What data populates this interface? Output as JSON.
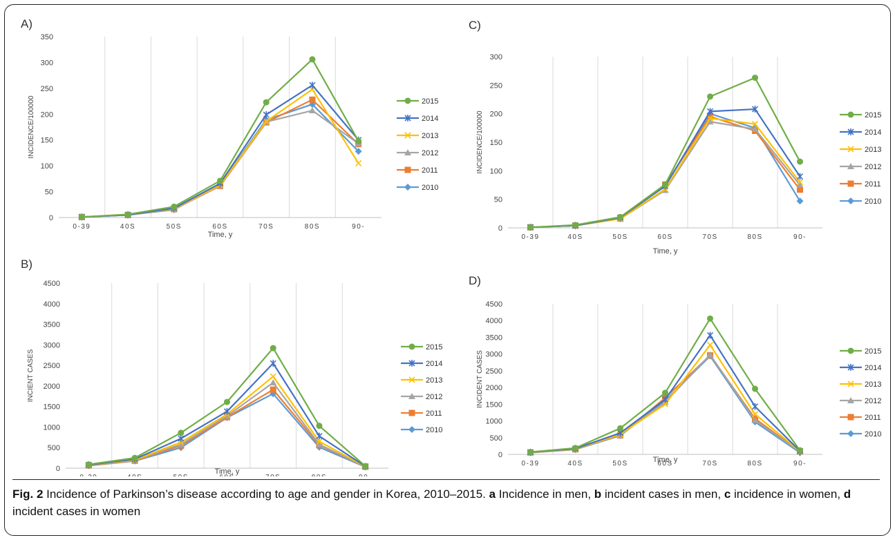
{
  "caption": {
    "label": "Fig. 2",
    "title": " Incidence of Parkinson’s disease according to age and gender in Korea, 2010–2015. ",
    "parts": [
      {
        "letter": "a",
        "text": " Incidence in men, "
      },
      {
        "letter": "b",
        "text": " incident cases in men, "
      },
      {
        "letter": "c",
        "text": " incidence in women, "
      },
      {
        "letter": "d",
        "text": " incident cases in women"
      }
    ]
  },
  "colors": {
    "2015": "#70AD47",
    "2014": "#4472C4",
    "2013": "#FFC000",
    "2012": "#A5A5A5",
    "2011": "#ED7D31",
    "2010": "#5B9BD5"
  },
  "chart_data": [
    {
      "panel": "A)",
      "type": "line",
      "categories": [
        "0-39",
        "40S",
        "50S",
        "60S",
        "70S",
        "80S",
        "90-"
      ],
      "ylabel": "INCIDENCE/100000",
      "xlabel": "Time, y",
      "ylim": [
        0,
        350
      ],
      "yticks": [
        0,
        50,
        100,
        150,
        200,
        250,
        300,
        350
      ],
      "grid": "vertical",
      "legend": "right",
      "series": [
        {
          "name": "2015",
          "marker": "circle",
          "values": [
            1,
            6,
            21,
            71,
            223,
            306,
            148
          ]
        },
        {
          "name": "2014",
          "marker": "star",
          "values": [
            1,
            5,
            18,
            66,
            199,
            256,
            150
          ]
        },
        {
          "name": "2013",
          "marker": "x",
          "values": [
            1,
            5,
            17,
            63,
            186,
            248,
            105
          ]
        },
        {
          "name": "2012",
          "marker": "triangle",
          "values": [
            1,
            5,
            16,
            62,
            185,
            207,
            143
          ]
        },
        {
          "name": "2011",
          "marker": "square",
          "values": [
            1,
            5,
            16,
            61,
            184,
            228,
            142
          ]
        },
        {
          "name": "2010",
          "marker": "diamond",
          "values": [
            1,
            5,
            15,
            64,
            189,
            219,
            128
          ]
        }
      ]
    },
    {
      "panel": "B)",
      "type": "line",
      "categories": [
        "0-39",
        "40S",
        "50S",
        "60S",
        "70S",
        "80S",
        "90-"
      ],
      "ylabel": "INCIENT CASES",
      "xlabel": "Time, y",
      "ylim": [
        0,
        4500
      ],
      "yticks": [
        0,
        500,
        1000,
        1500,
        2000,
        2500,
        3000,
        3500,
        4000,
        4500
      ],
      "grid": "vertical",
      "legend": "right",
      "series": [
        {
          "name": "2015",
          "marker": "circle",
          "values": [
            90,
            250,
            860,
            1610,
            2920,
            1030,
            50
          ]
        },
        {
          "name": "2014",
          "marker": "star",
          "values": [
            80,
            220,
            720,
            1380,
            2550,
            780,
            45
          ]
        },
        {
          "name": "2013",
          "marker": "x",
          "values": [
            75,
            200,
            630,
            1310,
            2230,
            650,
            40
          ]
        },
        {
          "name": "2012",
          "marker": "triangle",
          "values": [
            70,
            190,
            580,
            1270,
            2080,
            580,
            35
          ]
        },
        {
          "name": "2011",
          "marker": "square",
          "values": [
            65,
            180,
            550,
            1240,
            1910,
            560,
            35
          ]
        },
        {
          "name": "2010",
          "marker": "diamond",
          "values": [
            60,
            175,
            500,
            1230,
            1810,
            510,
            30
          ]
        }
      ]
    },
    {
      "panel": "C)",
      "type": "line",
      "categories": [
        "0-39",
        "40S",
        "50S",
        "60S",
        "70S",
        "80S",
        "90-"
      ],
      "ylabel": "INCIDENCE/100000",
      "xlabel": "Time, y",
      "ylim": [
        0,
        300
      ],
      "yticks": [
        0,
        50,
        100,
        150,
        200,
        250,
        300
      ],
      "grid": "vertical",
      "legend": "right",
      "series": [
        {
          "name": "2015",
          "marker": "circle",
          "values": [
            1,
            5,
            19,
            76,
            230,
            263,
            116
          ]
        },
        {
          "name": "2014",
          "marker": "star",
          "values": [
            1,
            4,
            18,
            73,
            204,
            208,
            90
          ]
        },
        {
          "name": "2013",
          "marker": "x",
          "values": [
            1,
            4,
            16,
            68,
            192,
            182,
            80
          ]
        },
        {
          "name": "2012",
          "marker": "triangle",
          "values": [
            1,
            4,
            16,
            66,
            186,
            173,
            75
          ]
        },
        {
          "name": "2011",
          "marker": "square",
          "values": [
            1,
            4,
            16,
            76,
            195,
            170,
            67
          ]
        },
        {
          "name": "2010",
          "marker": "diamond",
          "values": [
            1,
            4,
            17,
            74,
            200,
            175,
            47
          ]
        }
      ]
    },
    {
      "panel": "D)",
      "type": "line",
      "categories": [
        "0-39",
        "40S",
        "50S",
        "60S",
        "70S",
        "80S",
        "90-"
      ],
      "ylabel": "INCIDENT CASES",
      "xlabel": "Time, y",
      "ylim": [
        0,
        4500
      ],
      "yticks": [
        0,
        500,
        1000,
        1500,
        2000,
        2500,
        3000,
        3500,
        4000,
        4500
      ],
      "grid": "vertical",
      "legend": "right",
      "series": [
        {
          "name": "2015",
          "marker": "circle",
          "values": [
            70,
            190,
            780,
            1840,
            4060,
            1960,
            120
          ]
        },
        {
          "name": "2014",
          "marker": "star",
          "values": [
            65,
            170,
            640,
            1640,
            3560,
            1430,
            100
          ]
        },
        {
          "name": "2013",
          "marker": "x",
          "values": [
            60,
            160,
            600,
            1500,
            3270,
            1200,
            90
          ]
        },
        {
          "name": "2012",
          "marker": "triangle",
          "values": [
            55,
            150,
            580,
            1560,
            2980,
            1020,
            80
          ]
        },
        {
          "name": "2011",
          "marker": "square",
          "values": [
            55,
            150,
            570,
            1690,
            2960,
            1070,
            85
          ]
        },
        {
          "name": "2010",
          "marker": "diamond",
          "values": [
            50,
            145,
            560,
            1600,
            2940,
            970,
            50
          ]
        }
      ]
    }
  ]
}
